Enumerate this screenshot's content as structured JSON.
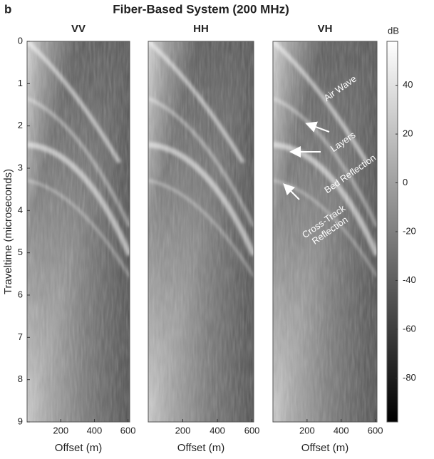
{
  "panel_label": "b",
  "title": "Fiber-Based System (200 MHz)",
  "chart_data": [
    {
      "type": "heatmap",
      "title": "VV",
      "xlabel": "Offset (m)",
      "ylabel": "Traveltime (microseconds)",
      "xlim": [
        0,
        610
      ],
      "xticks": [
        200,
        400,
        600
      ],
      "ylim": [
        0,
        9
      ],
      "yticks": [
        0,
        1,
        2,
        3,
        4,
        5,
        6,
        7,
        8,
        9
      ],
      "y_reversed": true
    },
    {
      "type": "heatmap",
      "title": "HH",
      "xlabel": "Offset (m)",
      "xlim": [
        0,
        610
      ],
      "xticks": [
        200,
        400,
        600
      ],
      "ylim": [
        0,
        9
      ],
      "y_reversed": true
    },
    {
      "type": "heatmap",
      "title": "VH",
      "xlabel": "Offset (m)",
      "xlim": [
        0,
        610
      ],
      "xticks": [
        200,
        400,
        600
      ],
      "ylim": [
        0,
        9
      ],
      "y_reversed": true,
      "annotations": [
        {
          "lines": [
            "Air Wave"
          ]
        },
        {
          "lines": [
            "Layers"
          ]
        },
        {
          "lines": [
            "Bed Reflection"
          ]
        },
        {
          "lines": [
            "Cross-Track",
            "Reflection"
          ]
        }
      ]
    }
  ],
  "colorbar": {
    "label": "dB",
    "lim": [
      -98,
      58
    ],
    "ticks": [
      -80,
      -60,
      -40,
      -20,
      0,
      20,
      40
    ]
  }
}
